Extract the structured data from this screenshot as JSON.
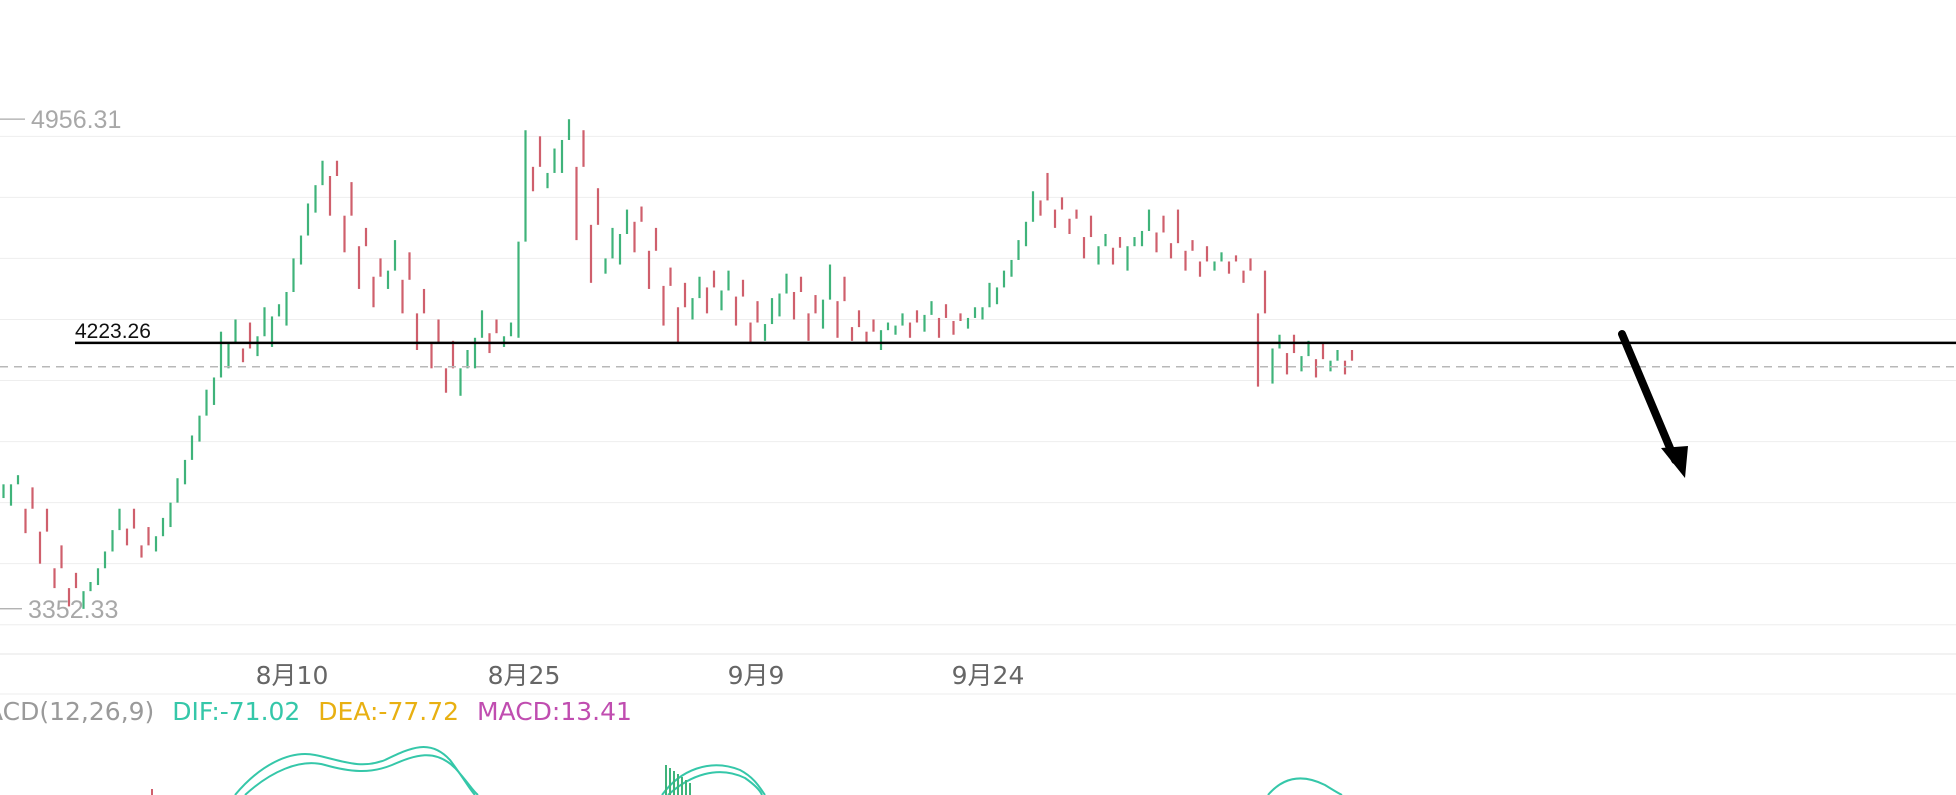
{
  "chart_data": {
    "type": "candlestick",
    "colors": {
      "up": "#3fb37a",
      "down": "#cf5f6c",
      "grid": "#eeeeee",
      "label_muted": "#a8a8a8",
      "dif": "#35c7a9",
      "dea": "#e8b012",
      "macd": "#c04db0",
      "annotation": "#000000"
    },
    "y_axis": {
      "min": 3250,
      "max": 5150
    },
    "x_axis": {
      "tick_labels": [
        "8月10",
        "8月25",
        "9月9",
        "9月24"
      ],
      "tick_index": [
        16,
        32,
        48,
        64
      ]
    },
    "labels": {
      "high_label": "4956.31",
      "low_label": "3352.33",
      "support_label": "4223.26"
    },
    "values": {
      "high": 4956.31,
      "low": 3352.33,
      "support_level": 4223.26,
      "dashed_level": 4145
    },
    "annotation": {
      "type": "down-arrow",
      "meaning": "break below support"
    },
    "candles": [
      [
        3690,
        3740,
        3640,
        3760
      ],
      [
        3740,
        3780,
        3690,
        3790
      ],
      [
        3720,
        3640,
        3600,
        3750
      ],
      [
        3650,
        3560,
        3500,
        3680
      ],
      [
        3520,
        3450,
        3420,
        3560
      ],
      [
        3440,
        3400,
        3360,
        3470
      ],
      [
        3390,
        3430,
        3352,
        3440
      ],
      [
        3450,
        3520,
        3430,
        3540
      ],
      [
        3560,
        3660,
        3540,
        3680
      ],
      [
        3640,
        3590,
        3560,
        3680
      ],
      [
        3580,
        3540,
        3520,
        3620
      ],
      [
        3560,
        3620,
        3540,
        3650
      ],
      [
        3640,
        3760,
        3620,
        3780
      ],
      [
        3780,
        3900,
        3760,
        3920
      ],
      [
        3920,
        4050,
        3900,
        4070
      ],
      [
        4040,
        4180,
        4020,
        4260
      ],
      [
        4200,
        4240,
        4140,
        4300
      ],
      [
        4230,
        4180,
        4160,
        4290
      ],
      [
        4190,
        4300,
        4180,
        4340
      ],
      [
        4290,
        4330,
        4210,
        4350
      ],
      [
        4300,
        4480,
        4280,
        4500
      ],
      [
        4500,
        4650,
        4480,
        4680
      ],
      [
        4680,
        4800,
        4650,
        4820
      ],
      [
        4790,
        4750,
        4640,
        4820
      ],
      [
        4700,
        4580,
        4520,
        4750
      ],
      [
        4580,
        4500,
        4400,
        4600
      ],
      [
        4480,
        4400,
        4340,
        4500
      ],
      [
        4420,
        4500,
        4400,
        4560
      ],
      [
        4500,
        4360,
        4320,
        4520
      ],
      [
        4360,
        4280,
        4200,
        4400
      ],
      [
        4250,
        4200,
        4140,
        4300
      ],
      [
        4200,
        4080,
        4060,
        4230
      ],
      [
        4100,
        4180,
        4050,
        4200
      ],
      [
        4180,
        4300,
        4140,
        4330
      ],
      [
        4280,
        4230,
        4190,
        4300
      ],
      [
        4230,
        4260,
        4210,
        4290
      ],
      [
        4260,
        4850,
        4240,
        4920
      ],
      [
        4840,
        4760,
        4720,
        4900
      ],
      [
        4760,
        4800,
        4730,
        4860
      ],
      [
        4820,
        4956,
        4780,
        4956
      ],
      [
        4900,
        4700,
        4560,
        4920
      ],
      [
        4700,
        4520,
        4420,
        4730
      ],
      [
        4480,
        4520,
        4450,
        4600
      ],
      [
        4520,
        4640,
        4480,
        4660
      ],
      [
        4640,
        4600,
        4520,
        4670
      ],
      [
        4580,
        4470,
        4400,
        4600
      ],
      [
        4440,
        4380,
        4280,
        4470
      ],
      [
        4360,
        4320,
        4220,
        4420
      ],
      [
        4320,
        4420,
        4300,
        4440
      ],
      [
        4430,
        4380,
        4320,
        4460
      ],
      [
        4370,
        4420,
        4330,
        4460
      ],
      [
        4410,
        4340,
        4280,
        4430
      ],
      [
        4320,
        4260,
        4220,
        4360
      ],
      [
        4250,
        4320,
        4230,
        4370
      ],
      [
        4340,
        4430,
        4310,
        4450
      ],
      [
        4410,
        4370,
        4300,
        4440
      ],
      [
        4350,
        4290,
        4230,
        4380
      ],
      [
        4290,
        4440,
        4270,
        4480
      ],
      [
        4420,
        4300,
        4240,
        4440
      ],
      [
        4290,
        4260,
        4230,
        4330
      ],
      [
        4270,
        4250,
        4220,
        4300
      ],
      [
        4250,
        4280,
        4200,
        4290
      ],
      [
        4260,
        4300,
        4250,
        4320
      ],
      [
        4300,
        4280,
        4240,
        4330
      ],
      [
        4290,
        4340,
        4260,
        4360
      ],
      [
        4320,
        4290,
        4240,
        4350
      ],
      [
        4300,
        4290,
        4250,
        4320
      ],
      [
        4290,
        4320,
        4270,
        4340
      ],
      [
        4320,
        4360,
        4300,
        4420
      ],
      [
        4370,
        4440,
        4350,
        4460
      ],
      [
        4450,
        4540,
        4440,
        4560
      ],
      [
        4560,
        4680,
        4540,
        4720
      ],
      [
        4700,
        4680,
        4640,
        4780
      ],
      [
        4680,
        4640,
        4600,
        4700
      ],
      [
        4640,
        4620,
        4580,
        4660
      ],
      [
        4600,
        4540,
        4500,
        4640
      ],
      [
        4520,
        4560,
        4480,
        4580
      ],
      [
        4550,
        4520,
        4480,
        4570
      ],
      [
        4520,
        4560,
        4460,
        4570
      ],
      [
        4560,
        4620,
        4540,
        4660
      ],
      [
        4610,
        4560,
        4520,
        4640
      ],
      [
        4560,
        4540,
        4500,
        4660
      ],
      [
        4540,
        4510,
        4460,
        4560
      ],
      [
        4500,
        4480,
        4440,
        4540
      ],
      [
        4480,
        4500,
        4460,
        4520
      ],
      [
        4500,
        4480,
        4450,
        4510
      ],
      [
        4480,
        4440,
        4420,
        4500
      ],
      [
        4440,
        4200,
        4080,
        4460
      ],
      [
        4180,
        4230,
        4090,
        4250
      ],
      [
        4220,
        4160,
        4120,
        4250
      ],
      [
        4160,
        4200,
        4130,
        4230
      ],
      [
        4190,
        4150,
        4110,
        4220
      ],
      [
        4150,
        4180,
        4130,
        4200
      ],
      [
        4180,
        4150,
        4120,
        4200
      ]
    ]
  },
  "macd": {
    "label_prefix": "ACD(12,26,9)",
    "dif_text": "DIF:-71.02",
    "dea_text": "DEA:-77.72",
    "macd_text": "MACD:13.41"
  }
}
